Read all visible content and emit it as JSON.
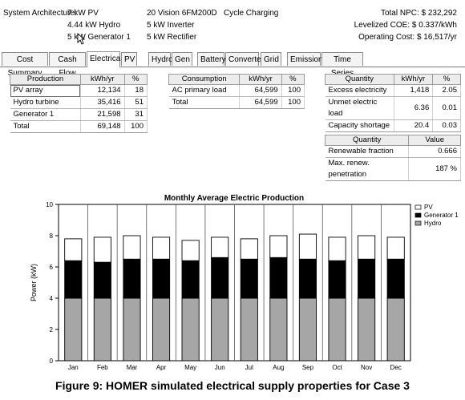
{
  "header": {
    "system_architecture_label": "System Architecture:",
    "arch_col1": [
      "7 kW PV",
      "4.44 kW Hydro",
      "5 kW Generator 1"
    ],
    "arch_col2": [
      "20 Vision 6FM200D",
      "5 kW Inverter",
      "5 kW Rectifier"
    ],
    "arch_col3": [
      "Cycle Charging"
    ],
    "total_npc": "Total NPC: $ 232,292",
    "levelized_coe": "Levelized COE: $ 0.337/kWh",
    "operating_cost": "Operating Cost: $ 16,517/yr"
  },
  "tabs": [
    {
      "label": "Cost Summary",
      "active": false
    },
    {
      "label": "Cash Flow",
      "active": false
    },
    {
      "label": "Electrical",
      "active": true
    },
    {
      "label": "PV",
      "active": false
    },
    {
      "label": "Hydro",
      "active": false
    },
    {
      "label": "Gen",
      "active": false
    },
    {
      "label": "Battery",
      "active": false
    },
    {
      "label": "Converter",
      "active": false
    },
    {
      "label": "Grid",
      "active": false
    },
    {
      "label": "Emissions",
      "active": false
    },
    {
      "label": "Time Series",
      "active": false
    }
  ],
  "production_table": {
    "headers": [
      "Production",
      "kWh/yr",
      "%"
    ],
    "rows": [
      [
        "PV array",
        "12,134",
        "18"
      ],
      [
        "Hydro turbine",
        "35,416",
        "51"
      ],
      [
        "Generator 1",
        "21,598",
        "31"
      ],
      [
        "Total",
        "69,148",
        "100"
      ]
    ]
  },
  "consumption_table": {
    "headers": [
      "Consumption",
      "kWh/yr",
      "%"
    ],
    "rows": [
      [
        "AC primary load",
        "64,599",
        "100"
      ],
      [
        "Total",
        "64,599",
        "100"
      ]
    ]
  },
  "quantity_table": {
    "headers": [
      "Quantity",
      "kWh/yr",
      "%"
    ],
    "rows": [
      [
        "Excess electricity",
        "1,418",
        "2.05"
      ],
      [
        "Unmet electric load",
        "6.36",
        "0.01"
      ],
      [
        "Capacity shortage",
        "20.4",
        "0.03"
      ]
    ]
  },
  "renewable_table": {
    "headers": [
      "Quantity",
      "Value"
    ],
    "rows": [
      [
        "Renewable fraction",
        "0.666"
      ],
      [
        "Max. renew. penetration",
        "187 %"
      ]
    ]
  },
  "chart_data": {
    "type": "bar",
    "stacked": true,
    "title": "Monthly Average Electric Production",
    "ylabel": "Power (kW)",
    "xlabel": "",
    "ylim": [
      0,
      10
    ],
    "yticks": [
      0,
      2,
      4,
      6,
      8,
      10
    ],
    "categories": [
      "Jan",
      "Feb",
      "Mar",
      "Apr",
      "May",
      "Jun",
      "Jul",
      "Aug",
      "Sep",
      "Oct",
      "Nov",
      "Dec"
    ],
    "series": [
      {
        "name": "Hydro",
        "color": "#a6a6a6",
        "values": [
          4.0,
          4.0,
          4.0,
          4.0,
          4.0,
          4.0,
          4.0,
          4.0,
          4.0,
          4.0,
          4.0,
          4.0
        ]
      },
      {
        "name": "Generator 1",
        "color": "#000000",
        "values": [
          2.4,
          2.3,
          2.5,
          2.5,
          2.4,
          2.6,
          2.5,
          2.6,
          2.5,
          2.4,
          2.5,
          2.5
        ]
      },
      {
        "name": "PV",
        "color": "#ffffff",
        "values": [
          1.4,
          1.6,
          1.5,
          1.4,
          1.3,
          1.3,
          1.3,
          1.4,
          1.6,
          1.5,
          1.5,
          1.4
        ]
      }
    ],
    "legend": {
      "position": "top-right",
      "order": [
        "PV",
        "Generator 1",
        "Hydro"
      ]
    },
    "grid": {
      "vertical": true,
      "horizontal": false
    }
  },
  "caption": "Figure 9: HOMER simulated electrical supply properties for Case 3"
}
